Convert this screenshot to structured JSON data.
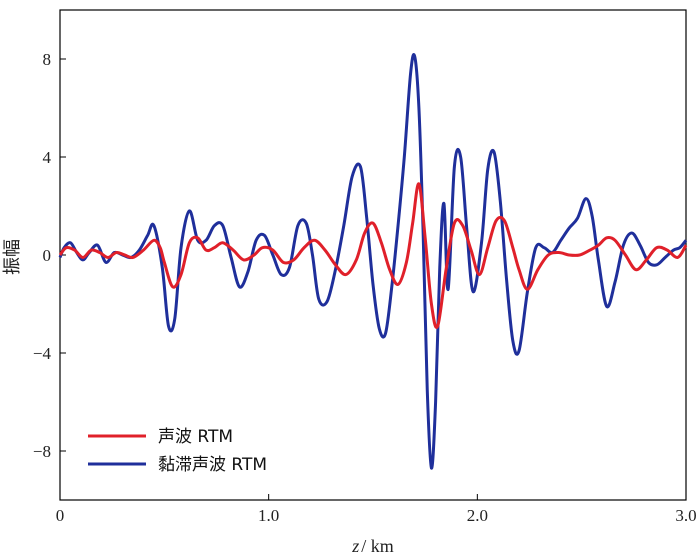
{
  "chart_data": {
    "type": "line",
    "xlabel_italic": "z",
    "xlabel_rest": "/ km",
    "ylabel": "振幅",
    "xlim": [
      0,
      3.0
    ],
    "ylim": [
      -10,
      10
    ],
    "xticks": [
      0,
      1.0,
      2.0,
      3.0
    ],
    "xtick_labels": [
      "0",
      "1.0",
      "2.0",
      "3.0"
    ],
    "yticks": [
      8,
      4,
      0,
      -4,
      -8
    ],
    "ytick_labels": [
      "8",
      "4",
      "0",
      "−4",
      "−8"
    ],
    "legend_position": "lower-left",
    "series": [
      {
        "name": "声波  RTM",
        "color": "#e0202a",
        "x": [
          0,
          0.03,
          0.07,
          0.11,
          0.15,
          0.19,
          0.23,
          0.27,
          0.31,
          0.35,
          0.4,
          0.45,
          0.48,
          0.5,
          0.54,
          0.58,
          0.62,
          0.66,
          0.7,
          0.74,
          0.78,
          0.83,
          0.88,
          0.93,
          0.97,
          1.02,
          1.07,
          1.12,
          1.17,
          1.22,
          1.27,
          1.32,
          1.37,
          1.42,
          1.46,
          1.5,
          1.54,
          1.58,
          1.62,
          1.66,
          1.69,
          1.72,
          1.75,
          1.78,
          1.81,
          1.85,
          1.89,
          1.93,
          1.97,
          2.01,
          2.05,
          2.09,
          2.13,
          2.17,
          2.2,
          2.24,
          2.29,
          2.34,
          2.39,
          2.44,
          2.49,
          2.54,
          2.58,
          2.62,
          2.66,
          2.71,
          2.76,
          2.81,
          2.86,
          2.91,
          2.96,
          3.0
        ],
        "y": [
          0.0,
          0.3,
          0.2,
          -0.1,
          0.2,
          0.1,
          -0.1,
          0.1,
          0.0,
          -0.1,
          0.2,
          0.6,
          0.3,
          -0.3,
          -1.3,
          -0.8,
          0.5,
          0.7,
          0.2,
          0.3,
          0.5,
          0.2,
          -0.2,
          0.0,
          0.3,
          0.2,
          -0.3,
          -0.2,
          0.3,
          0.6,
          0.2,
          -0.4,
          -0.8,
          -0.2,
          0.9,
          1.3,
          0.5,
          -0.6,
          -1.2,
          -0.3,
          1.3,
          2.9,
          0.7,
          -2.0,
          -2.9,
          -0.6,
          1.3,
          1.2,
          0.2,
          -0.8,
          0.3,
          1.4,
          1.4,
          0.3,
          -0.6,
          -1.4,
          -0.6,
          0.0,
          0.1,
          0.0,
          0.0,
          0.2,
          0.4,
          0.7,
          0.6,
          0.0,
          -0.6,
          -0.2,
          0.3,
          0.2,
          -0.1,
          0.4
        ]
      },
      {
        "name": "黏滞声波  RTM",
        "color": "#1f2f9b",
        "x": [
          0,
          0.02,
          0.05,
          0.08,
          0.11,
          0.14,
          0.18,
          0.22,
          0.26,
          0.3,
          0.34,
          0.38,
          0.42,
          0.45,
          0.49,
          0.52,
          0.55,
          0.58,
          0.62,
          0.66,
          0.7,
          0.74,
          0.78,
          0.82,
          0.86,
          0.9,
          0.94,
          0.98,
          1.02,
          1.06,
          1.1,
          1.14,
          1.18,
          1.21,
          1.24,
          1.28,
          1.32,
          1.36,
          1.4,
          1.44,
          1.47,
          1.5,
          1.53,
          1.56,
          1.59,
          1.62,
          1.65,
          1.68,
          1.7,
          1.72,
          1.74,
          1.76,
          1.78,
          1.8,
          1.82,
          1.84,
          1.86,
          1.89,
          1.92,
          1.95,
          1.98,
          2.02,
          2.05,
          2.08,
          2.11,
          2.14,
          2.17,
          2.2,
          2.24,
          2.28,
          2.32,
          2.36,
          2.4,
          2.44,
          2.48,
          2.52,
          2.55,
          2.58,
          2.62,
          2.66,
          2.7,
          2.74,
          2.78,
          2.82,
          2.86,
          2.9,
          2.94,
          2.97,
          3.0
        ],
        "y": [
          -0.1,
          0.3,
          0.5,
          0.1,
          -0.2,
          0.1,
          0.4,
          -0.3,
          0.1,
          0.0,
          -0.1,
          0.2,
          0.8,
          1.2,
          -0.5,
          -2.9,
          -2.6,
          0.3,
          1.8,
          0.6,
          0.6,
          1.2,
          1.2,
          -0.1,
          -1.3,
          -0.7,
          0.6,
          0.8,
          0.0,
          -0.8,
          -0.5,
          1.2,
          1.3,
          0.0,
          -1.8,
          -1.9,
          -0.6,
          1.2,
          3.2,
          3.6,
          1.5,
          -1.2,
          -3.0,
          -3.2,
          -1.3,
          1.2,
          4.0,
          7.4,
          8.1,
          6.0,
          1.0,
          -5.5,
          -8.7,
          -6.0,
          -0.5,
          2.1,
          -1.4,
          3.6,
          4.0,
          1.0,
          -1.5,
          0.5,
          3.5,
          4.2,
          2.2,
          -1.0,
          -3.5,
          -3.9,
          -1.5,
          0.3,
          0.3,
          0.1,
          0.6,
          1.1,
          1.5,
          2.3,
          1.6,
          -0.2,
          -2.1,
          -1.1,
          0.4,
          0.9,
          0.4,
          -0.3,
          -0.4,
          -0.1,
          0.2,
          0.3,
          0.6
        ]
      }
    ]
  }
}
